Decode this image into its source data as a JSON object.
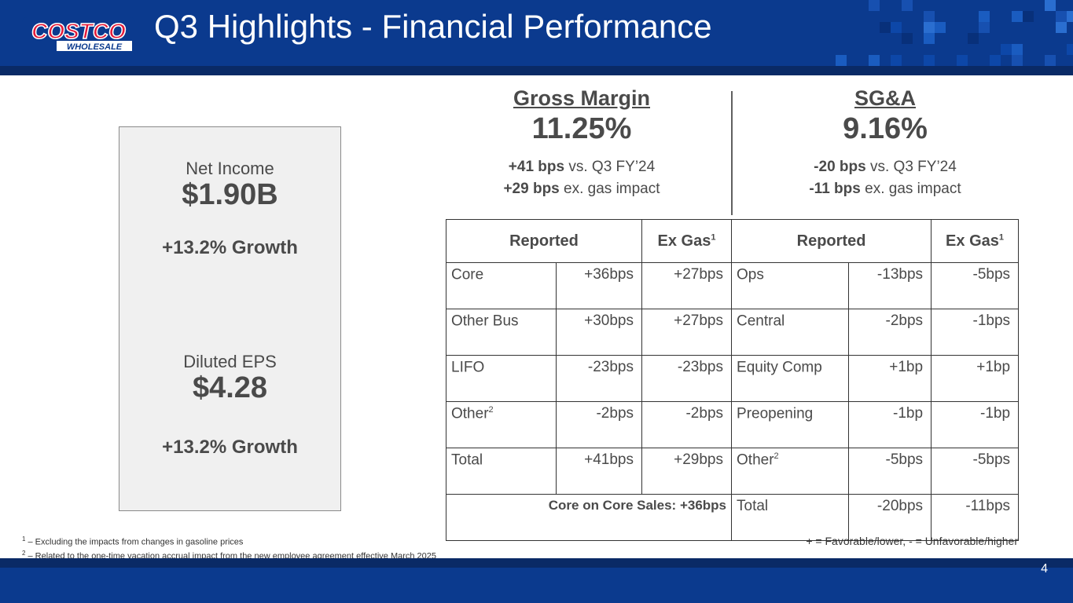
{
  "header": {
    "title": "Q3 Highlights - Financial Performance",
    "logo_line1": "COSTCO",
    "logo_line2": "WHOLESALE"
  },
  "kpis": {
    "net_income": {
      "label": "Net Income",
      "value": "$1.90B",
      "growth": "+13.2% Growth"
    },
    "eps": {
      "label": "Diluted EPS",
      "value": "$4.28",
      "growth": "+13.2% Growth"
    }
  },
  "gross_margin": {
    "title": "Gross Margin",
    "value": "11.25%",
    "line1_bold": "+41 bps",
    "line1_rest": " vs. Q3 FY’24",
    "line2_bold": "+29 bps",
    "line2_rest": " ex. gas impact"
  },
  "sga": {
    "title": "SG&A",
    "value": "9.16%",
    "line1_bold": "-20 bps",
    "line1_rest": " vs. Q3 FY’24",
    "line2_bold": "-11 bps",
    "line2_rest": " ex. gas impact"
  },
  "table": {
    "headers": {
      "reported": "Reported",
      "ex_gas": "Ex Gas",
      "sup": "1"
    },
    "rows": [
      {
        "gm_label": "Core",
        "gm_sup": "",
        "gm_rep": "+36bps",
        "gm_ex": "+27bps",
        "sga_label": "Ops",
        "sga_sup": "",
        "sga_rep": "-13bps",
        "sga_ex": "-5bps"
      },
      {
        "gm_label": "Other Bus",
        "gm_sup": "",
        "gm_rep": "+30bps",
        "gm_ex": "+27bps",
        "sga_label": "Central",
        "sga_sup": "",
        "sga_rep": "-2bps",
        "sga_ex": "-1bps"
      },
      {
        "gm_label": "LIFO",
        "gm_sup": "",
        "gm_rep": "-23bps",
        "gm_ex": "-23bps",
        "sga_label": "Equity Comp",
        "sga_sup": "",
        "sga_rep": "+1bp",
        "sga_ex": "+1bp"
      },
      {
        "gm_label": "Other",
        "gm_sup": "2",
        "gm_rep": "-2bps",
        "gm_ex": "-2bps",
        "sga_label": "Preopening",
        "sga_sup": "",
        "sga_rep": "-1bp",
        "sga_ex": "-1bp"
      },
      {
        "gm_label": "Total",
        "gm_sup": "",
        "gm_rep": "+41bps",
        "gm_ex": "+29bps",
        "sga_label": "Other",
        "sga_sup": "2",
        "sga_rep": "-5bps",
        "sga_ex": "-5bps"
      }
    ],
    "last_row": {
      "core_on_core": "Core on Core Sales: +36bps",
      "sga_label": "Total",
      "sga_rep": "-20bps",
      "sga_ex": "-11bps"
    }
  },
  "footnotes": {
    "n1_sup": "1",
    "n1": " – Excluding the impacts from changes in gasoline prices",
    "n2_sup": "2",
    "n2": " – Related to the one-time vacation accrual impact from the new employee agreement effective March 2025"
  },
  "legend": "+ = Favorable/lower, - = Unfavorable/higher",
  "page_number": "4",
  "colors": {
    "header_blue": "#0b3a8e",
    "band_navy": "#0a2a66",
    "logo_red": "#e31837",
    "text_gray": "#4a4a4a",
    "kpi_bg": "#f0f0f0"
  }
}
